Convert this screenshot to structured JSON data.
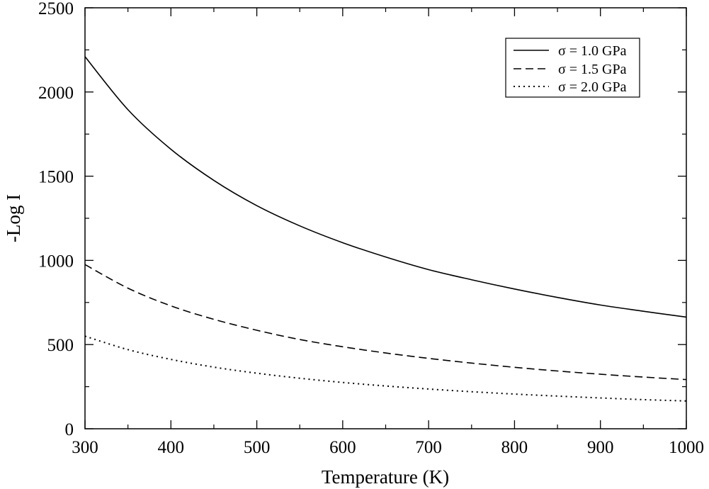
{
  "chart_data": {
    "type": "line",
    "title": "",
    "xlabel": "Temperature (K)",
    "ylabel": "-Log I",
    "xlim": [
      300,
      1000
    ],
    "ylim": [
      0,
      2500
    ],
    "x_ticks": [
      300,
      400,
      500,
      600,
      700,
      800,
      900,
      1000
    ],
    "x_tick_labels": [
      "300",
      "400",
      "500",
      "600",
      "700",
      "800",
      "900",
      "1000"
    ],
    "y_ticks": [
      0,
      500,
      1000,
      1500,
      2000,
      2500
    ],
    "y_tick_labels": [
      "0",
      "500",
      "1000",
      "1500",
      "2000",
      "2500"
    ],
    "grid": false,
    "legend_position": "top-right",
    "x": [
      300,
      350,
      400,
      450,
      500,
      550,
      600,
      650,
      700,
      750,
      800,
      850,
      900,
      950,
      1000
    ],
    "series": [
      {
        "name": "σ = 1.0 GPa",
        "style": "solid",
        "values": [
          2210,
          1895,
          1660,
          1475,
          1325,
          1205,
          1105,
          1020,
          945,
          885,
          830,
          780,
          735,
          698,
          663
        ]
      },
      {
        "name": "σ = 1.5 GPa",
        "style": "dashed",
        "values": [
          975,
          835,
          730,
          650,
          585,
          530,
          487,
          450,
          418,
          390,
          365,
          343,
          324,
          307,
          292
        ]
      },
      {
        "name": "σ = 2.0 GPa",
        "style": "dotted",
        "values": [
          550,
          470,
          412,
          366,
          330,
          300,
          275,
          254,
          236,
          220,
          206,
          194,
          183,
          173,
          165
        ]
      }
    ]
  }
}
